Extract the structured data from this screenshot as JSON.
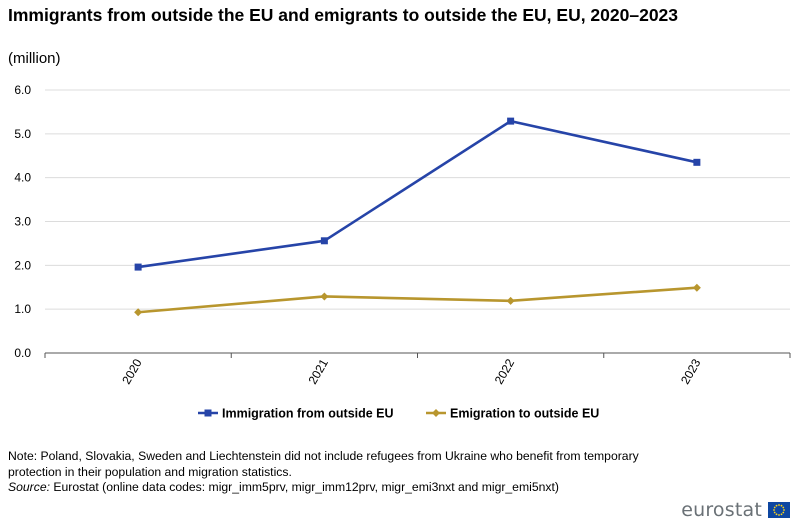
{
  "title": "Immigrants from outside the EU and emigrants to outside the EU, EU, 2020–2023",
  "subtitle": "(million)",
  "chart_data": {
    "type": "line",
    "categories": [
      "2020",
      "2021",
      "2022",
      "2023"
    ],
    "ylim": [
      0,
      6
    ],
    "yticks": [
      "0.0",
      "1.0",
      "2.0",
      "3.0",
      "4.0",
      "5.0",
      "6.0"
    ],
    "grid": true,
    "legend_position": "bottom",
    "series": [
      {
        "name": "Immigration from outside EU",
        "values": [
          1.96,
          2.56,
          5.29,
          4.35
        ],
        "color": "#2644a8",
        "marker": "square"
      },
      {
        "name": "Emigration to outside EU",
        "values": [
          0.93,
          1.29,
          1.19,
          1.49
        ],
        "color": "#b8962e",
        "marker": "diamond"
      }
    ]
  },
  "footer": {
    "note": "Note: Poland, Slovakia, Sweden and Liechtenstein did not include refugees from Ukraine who benefit from temporary protection in their population and migration statistics.",
    "source_label": "Source:",
    "source_text": " Eurostat (online data codes: migr_imm5prv, migr_imm12prv, migr_emi3nxt and migr_emi5nxt)"
  },
  "logo": {
    "text": "eurostat",
    "icon": "eu-flag-icon"
  }
}
